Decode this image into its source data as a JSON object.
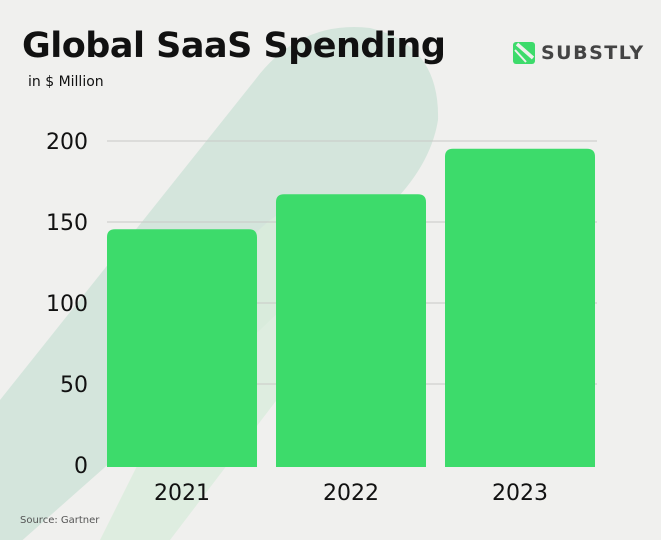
{
  "chart_data": {
    "type": "bar",
    "title": "Global SaaS Spending",
    "subtitle": "in $ Million",
    "categories": [
      "2021",
      "2022",
      "2023"
    ],
    "values": [
      145.5,
      167.1,
      195.2
    ],
    "ylim": [
      0,
      200
    ],
    "yticks": [
      "0",
      "50",
      "100",
      "150",
      "200"
    ],
    "grid": true,
    "bar_color": "#3ddb6b",
    "source": "Source: Gartner"
  },
  "brand": {
    "name": "SUBSTLY",
    "color": "#3ddb6b"
  }
}
